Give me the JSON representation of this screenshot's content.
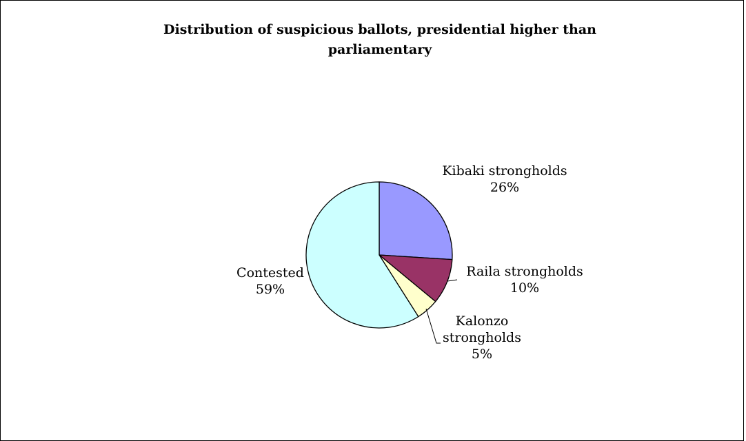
{
  "chart_data": {
    "type": "pie",
    "title_lines": [
      "Distribution of suspicious ballots, presidential higher than",
      "parliamentary"
    ],
    "slices": [
      {
        "label_lines": [
          "Kibaki strongholds"
        ],
        "percent_label": "26%",
        "value": 26,
        "color": "#9999FF"
      },
      {
        "label_lines": [
          "Raila strongholds"
        ],
        "percent_label": "10%",
        "value": 10,
        "color": "#993366"
      },
      {
        "label_lines": [
          "Kalonzo",
          "strongholds"
        ],
        "percent_label": "5%",
        "value": 5,
        "color": "#FFFFCC"
      },
      {
        "label_lines": [
          "Contested"
        ],
        "percent_label": "59%",
        "value": 59,
        "color": "#CCFFFF"
      }
    ],
    "start_angle_deg": 0,
    "direction": "clockwise",
    "legend": "none"
  }
}
